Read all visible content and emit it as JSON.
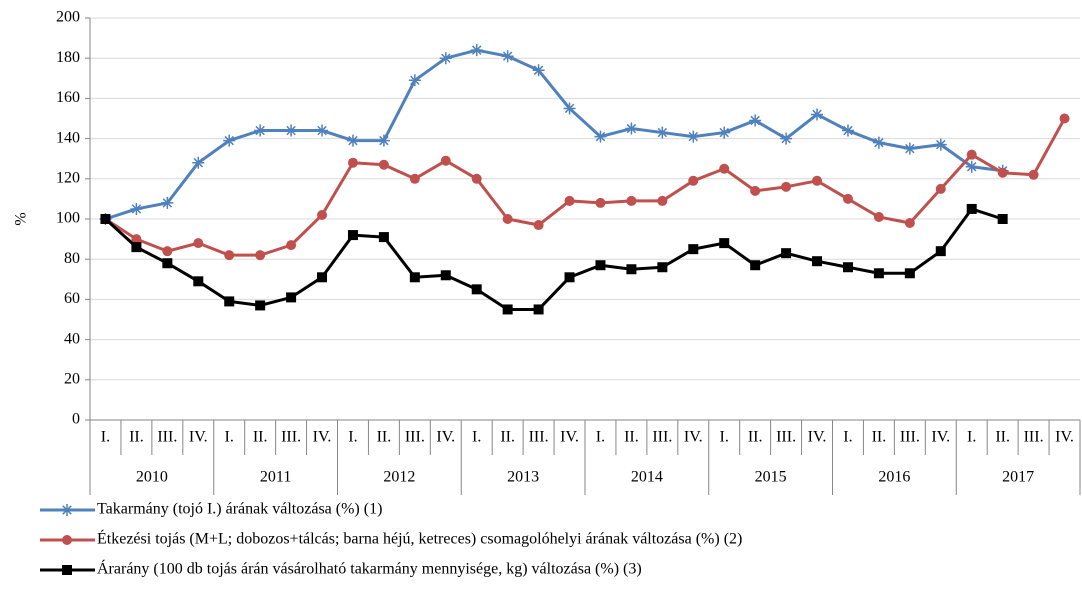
{
  "chart_data": {
    "type": "line",
    "y_label": "%",
    "categories": [
      "I.",
      "II.",
      "III.",
      "IV.",
      "I.",
      "II.",
      "III.",
      "IV.",
      "I.",
      "II.",
      "III.",
      "IV.",
      "I.",
      "II.",
      "III.",
      "IV.",
      "I.",
      "II.",
      "III.",
      "IV.",
      "I.",
      "II.",
      "III.",
      "IV.",
      "I.",
      "II.",
      "III.",
      "IV.",
      "I.",
      "II.",
      "III.",
      "IV."
    ],
    "category_groups": [
      "2010",
      "2011",
      "2012",
      "2013",
      "2014",
      "2015",
      "2016",
      "2017"
    ],
    "ylim": [
      0,
      200
    ],
    "yticks": [
      0,
      20,
      40,
      60,
      80,
      100,
      120,
      140,
      160,
      180,
      200
    ],
    "grid": true,
    "series": [
      {
        "name": "Takarmány (tojó I.) árának változása (%) (1)",
        "color": "#4f81bd",
        "marker": "asterisk",
        "values": [
          100,
          105,
          108,
          128,
          139,
          144,
          144,
          144,
          139,
          139,
          169,
          180,
          184,
          181,
          174,
          155,
          141,
          145,
          143,
          141,
          143,
          149,
          140,
          152,
          144,
          138,
          135,
          137,
          126,
          124,
          null,
          null
        ]
      },
      {
        "name": "Étkezési tojás (M+L; dobozos+tálcás; barna héjú, ketreces) csomagolóhelyi árának változása (%) (2)",
        "color": "#c0504d",
        "marker": "circle",
        "values": [
          100,
          90,
          84,
          88,
          82,
          82,
          87,
          102,
          128,
          127,
          120,
          129,
          120,
          100,
          97,
          109,
          108,
          109,
          109,
          119,
          125,
          114,
          116,
          119,
          110,
          101,
          98,
          115,
          132,
          123,
          122,
          150
        ]
      },
      {
        "name": "Árarány (100 db tojás árán vásárolható takarmány mennyisége, kg) változása (%) (3)",
        "color": "#000000",
        "marker": "square",
        "values": [
          100,
          86,
          78,
          69,
          59,
          57,
          61,
          71,
          92,
          91,
          71,
          72,
          65,
          55,
          55,
          71,
          77,
          75,
          76,
          85,
          88,
          77,
          83,
          79,
          76,
          73,
          73,
          84,
          105,
          100,
          null,
          null
        ]
      }
    ]
  }
}
